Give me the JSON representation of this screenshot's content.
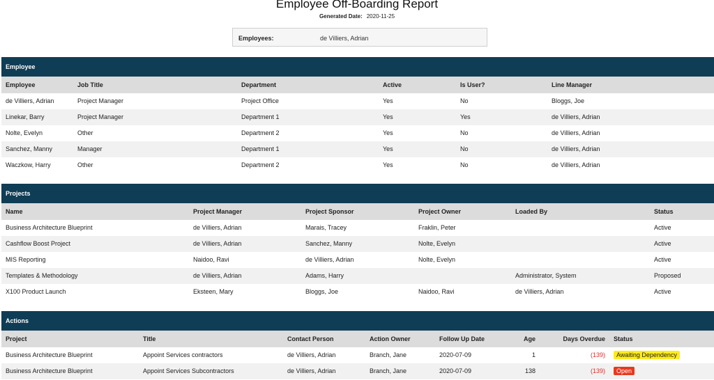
{
  "report": {
    "title": "Employee Off-Boarding Report",
    "generated_label": "Generated Date:",
    "generated_date": "2020-11-25",
    "employees_label": "Employees:",
    "employees_value": "de Villiers, Adrian"
  },
  "employee": {
    "section_title": "Employee",
    "headers": [
      "Employee",
      "Job Title",
      "Department",
      "Active",
      "Is User?",
      "Line Manager"
    ],
    "rows": [
      [
        "de Villiers, Adrian",
        "Project Manager",
        "Project Office",
        "Yes",
        "No",
        "Bloggs, Joe"
      ],
      [
        "Linekar, Barry",
        "Project Manager",
        "Department 1",
        "Yes",
        "Yes",
        "de Villiers, Adrian"
      ],
      [
        "Nolte, Evelyn",
        "Other",
        "Department 2",
        "Yes",
        "No",
        "de Villiers, Adrian"
      ],
      [
        "Sanchez, Manny",
        "Manager",
        "Department 1",
        "Yes",
        "No",
        "de Villiers, Adrian"
      ],
      [
        "Waczkow, Harry",
        "Other",
        "Department 2",
        "Yes",
        "No",
        "de Villiers, Adrian"
      ]
    ]
  },
  "projects": {
    "section_title": "Projects",
    "headers": [
      "Name",
      "Project Manager",
      "Project Sponsor",
      "Project Owner",
      "Loaded By",
      "Status"
    ],
    "rows": [
      [
        "Business Architecture Blueprint",
        "de Villiers, Adrian",
        "Marais, Tracey",
        "Fraklin, Peter",
        "",
        "Active"
      ],
      [
        "Cashflow Boost Project",
        "de Villiers, Adrian",
        "Sanchez, Manny",
        "Nolte, Evelyn",
        "",
        "Active"
      ],
      [
        "MIS Reporting",
        "Naidoo, Ravi",
        "de Villiers, Adrian",
        "Nolte, Evelyn",
        "",
        "Active"
      ],
      [
        "Templates & Methodology",
        "de Villiers, Adrian",
        "Adams, Harry",
        "",
        "Administrator, System",
        "Proposed"
      ],
      [
        "X100 Product Launch",
        "Eksteen, Mary",
        "Bloggs, Joe",
        "Naidoo, Ravi",
        "de Villiers, Adrian",
        "Active"
      ]
    ]
  },
  "actions": {
    "section_title": "Actions",
    "headers": [
      "Project",
      "Title",
      "Contact Person",
      "Action Owner",
      "Follow Up Date",
      "Age",
      "Days Overdue",
      "Status"
    ],
    "rows": [
      [
        "Business Architecture Blueprint",
        "Appoint Services contractors",
        "de Villiers, Adrian",
        "Branch, Jane",
        "2020-07-09",
        "1",
        "(139)",
        "Awaiting Dependency"
      ],
      [
        "Business Architecture Blueprint",
        "Appoint Services Subcontractors",
        "de Villiers, Adrian",
        "Branch, Jane",
        "2020-07-09",
        "138",
        "(139)",
        "Open"
      ]
    ],
    "status_colors": {
      "Awaiting Dependency": "#ffeb1a",
      "Open": "#e8381e"
    }
  },
  "colors": {
    "section_header": "#0f3d55",
    "column_header": "#dcdcdc",
    "overdue": "#d9302a"
  }
}
